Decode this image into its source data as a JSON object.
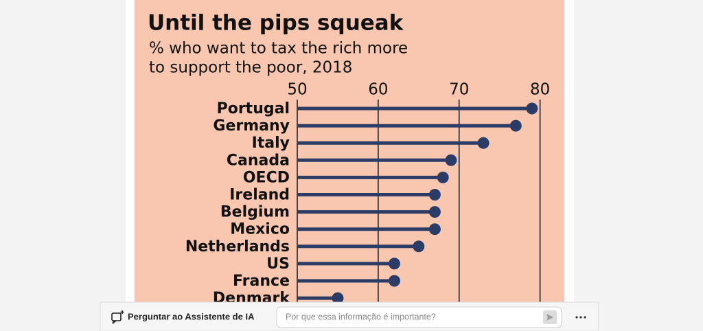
{
  "chart_data": {
    "type": "lollipop",
    "title": "Until the pips squeak",
    "subtitle": [
      "% who want to tax the rich more",
      "to support the poor, 2018"
    ],
    "categories": [
      "Portugal",
      "Germany",
      "Italy",
      "Canada",
      "OECD",
      "Ireland",
      "Belgium",
      "Mexico",
      "Netherlands",
      "US",
      "France",
      "Denmark"
    ],
    "values": [
      79,
      77,
      73,
      69,
      68,
      67,
      67,
      67,
      65,
      62,
      62,
      55
    ],
    "color": "#2b3d66",
    "xlim": [
      50,
      83
    ],
    "xticks": [
      50,
      60,
      70,
      80
    ],
    "grid": true
  },
  "ui": {
    "assistant_label": "Perguntar ao Assistente de IA",
    "input_placeholder": "Por que essa informação é importante?"
  }
}
